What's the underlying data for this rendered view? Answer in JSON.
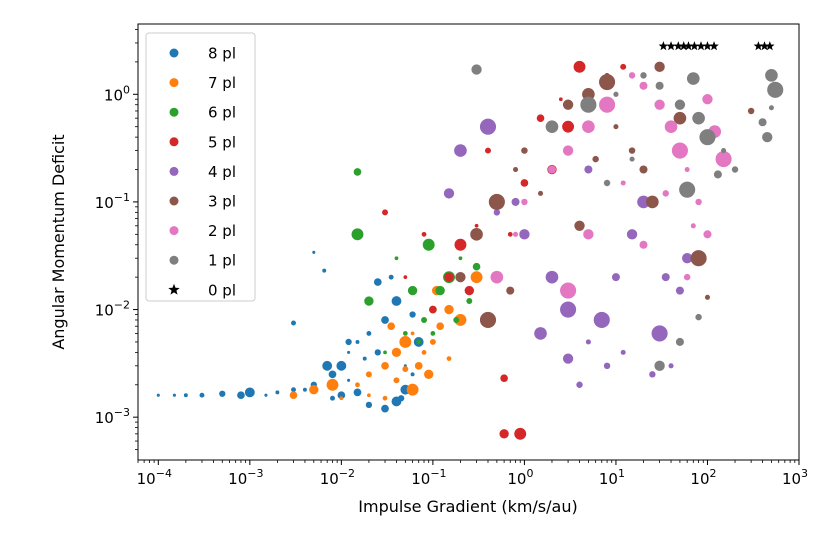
{
  "chart_data": {
    "type": "scatter",
    "xscale": "log",
    "yscale": "log",
    "xlim": [
      6e-05,
      1000
    ],
    "ylim": [
      0.0004,
      4.5
    ],
    "xlabel": "Impulse Gradient (km/s/au)",
    "ylabel": "Angular Momentum Deficit",
    "x_ticks": [
      {
        "value": 0.0001,
        "base": "10",
        "exp": "−4"
      },
      {
        "value": 0.001,
        "base": "10",
        "exp": "−3"
      },
      {
        "value": 0.01,
        "base": "10",
        "exp": "−2"
      },
      {
        "value": 0.1,
        "base": "10",
        "exp": "−1"
      },
      {
        "value": 1,
        "base": "10",
        "exp": "0"
      },
      {
        "value": 10,
        "base": "10",
        "exp": "1"
      },
      {
        "value": 100,
        "base": "10",
        "exp": "2"
      },
      {
        "value": 1000,
        "base": "10",
        "exp": "3"
      }
    ],
    "y_ticks": [
      {
        "value": 0.001,
        "base": "10",
        "exp": "−3"
      },
      {
        "value": 0.01,
        "base": "10",
        "exp": "−2"
      },
      {
        "value": 0.1,
        "base": "10",
        "exp": "−1"
      },
      {
        "value": 1,
        "base": "10",
        "exp": "0"
      }
    ],
    "legend_position": "upper-left",
    "series": [
      {
        "name": "8 pl",
        "color": "#1f77b4",
        "marker": "circle",
        "points": [
          [
            0.00015,
            0.0016
          ],
          [
            0.0002,
            0.0016
          ],
          [
            0.0003,
            0.0016
          ],
          [
            0.0005,
            0.00165
          ],
          [
            0.0008,
            0.0016
          ],
          [
            0.001,
            0.0017
          ],
          [
            0.0015,
            0.0016
          ],
          [
            0.002,
            0.0017
          ],
          [
            0.003,
            0.0018
          ],
          [
            0.005,
            0.002
          ],
          [
            0.008,
            0.0025
          ],
          [
            0.01,
            0.003
          ],
          [
            0.012,
            0.004
          ],
          [
            0.015,
            0.005
          ],
          [
            0.02,
            0.006
          ],
          [
            0.025,
            0.004
          ],
          [
            0.03,
            0.008
          ],
          [
            0.04,
            0.012
          ],
          [
            0.05,
            0.003
          ],
          [
            0.06,
            0.0025
          ],
          [
            0.008,
            0.0015
          ],
          [
            0.02,
            0.0013
          ],
          [
            0.03,
            0.0012
          ],
          [
            0.05,
            0.0018
          ],
          [
            0.012,
            0.0022
          ],
          [
            0.018,
            0.0035
          ],
          [
            0.035,
            0.02
          ],
          [
            0.045,
            0.0015
          ],
          [
            0.015,
            0.0017
          ],
          [
            0.07,
            0.005
          ],
          [
            0.0001,
            0.0016
          ],
          [
            0.004,
            0.0018
          ],
          [
            0.02,
            0.0025
          ],
          [
            0.012,
            0.005
          ],
          [
            0.025,
            0.018
          ],
          [
            0.007,
            0.003
          ],
          [
            0.005,
            0.034
          ],
          [
            0.0065,
            0.023
          ],
          [
            0.003,
            0.0075
          ],
          [
            0.06,
            0.009
          ],
          [
            0.01,
            0.0016
          ],
          [
            0.04,
            0.0014
          ]
        ]
      },
      {
        "name": "7 pl",
        "color": "#ff7f0e",
        "marker": "circle",
        "points": [
          [
            0.003,
            0.0016
          ],
          [
            0.005,
            0.0018
          ],
          [
            0.008,
            0.002
          ],
          [
            0.01,
            0.0015
          ],
          [
            0.015,
            0.002
          ],
          [
            0.02,
            0.0025
          ],
          [
            0.03,
            0.003
          ],
          [
            0.04,
            0.004
          ],
          [
            0.05,
            0.005
          ],
          [
            0.06,
            0.006
          ],
          [
            0.08,
            0.004
          ],
          [
            0.1,
            0.005
          ],
          [
            0.12,
            0.007
          ],
          [
            0.15,
            0.01
          ],
          [
            0.2,
            0.008
          ],
          [
            0.25,
            0.012
          ],
          [
            0.03,
            0.0015
          ],
          [
            0.04,
            0.0022
          ],
          [
            0.07,
            0.003
          ],
          [
            0.09,
            0.0025
          ],
          [
            0.06,
            0.0018
          ],
          [
            0.02,
            0.0016
          ],
          [
            0.15,
            0.0035
          ],
          [
            0.05,
            0.0028
          ],
          [
            0.035,
            0.007
          ],
          [
            0.11,
            0.015
          ],
          [
            0.3,
            0.02
          ]
        ]
      },
      {
        "name": "6 pl",
        "color": "#2ca02c",
        "marker": "circle",
        "points": [
          [
            0.03,
            0.004
          ],
          [
            0.05,
            0.006
          ],
          [
            0.08,
            0.008
          ],
          [
            0.1,
            0.01
          ],
          [
            0.12,
            0.015
          ],
          [
            0.15,
            0.02
          ],
          [
            0.2,
            0.03
          ],
          [
            0.07,
            0.005
          ],
          [
            0.25,
            0.012
          ],
          [
            0.3,
            0.025
          ],
          [
            0.02,
            0.012
          ],
          [
            0.015,
            0.05
          ],
          [
            0.04,
            0.03
          ],
          [
            0.1,
            0.006
          ],
          [
            0.18,
            0.008
          ],
          [
            0.015,
            0.19
          ],
          [
            0.06,
            0.015
          ],
          [
            0.09,
            0.04
          ]
        ]
      },
      {
        "name": "5 pl",
        "color": "#d62728",
        "marker": "circle",
        "points": [
          [
            0.1,
            0.01
          ],
          [
            0.15,
            0.02
          ],
          [
            0.2,
            0.04
          ],
          [
            0.3,
            0.06
          ],
          [
            0.5,
            0.08
          ],
          [
            0.8,
            0.1
          ],
          [
            1,
            0.15
          ],
          [
            2,
            0.2
          ],
          [
            3,
            0.5
          ],
          [
            5,
            1
          ],
          [
            8,
            1.5
          ],
          [
            12,
            1.8
          ],
          [
            0.6,
            0.0023
          ],
          [
            0.6,
            0.0007
          ],
          [
            0.9,
            0.0007
          ],
          [
            0.05,
            0.02
          ],
          [
            0.08,
            0.05
          ],
          [
            0.4,
            0.3
          ],
          [
            1.5,
            0.6
          ],
          [
            0.25,
            0.015
          ],
          [
            4,
            1.8
          ],
          [
            2.5,
            0.9
          ],
          [
            0.7,
            0.05
          ],
          [
            0.03,
            0.08
          ]
        ]
      },
      {
        "name": "4 pl",
        "color": "#9467bd",
        "marker": "circle",
        "points": [
          [
            0.3,
            0.05
          ],
          [
            0.5,
            0.08
          ],
          [
            0.8,
            0.1
          ],
          [
            1,
            0.05
          ],
          [
            2,
            0.02
          ],
          [
            3,
            0.01
          ],
          [
            5,
            0.005
          ],
          [
            8,
            0.003
          ],
          [
            10,
            0.02
          ],
          [
            15,
            0.05
          ],
          [
            20,
            0.1
          ],
          [
            30,
            0.006
          ],
          [
            40,
            0.003
          ],
          [
            25,
            0.0025
          ],
          [
            50,
            0.015
          ],
          [
            60,
            0.03
          ],
          [
            0.2,
            0.3
          ],
          [
            0.4,
            0.5
          ],
          [
            1,
            0.3
          ],
          [
            2,
            0.5
          ],
          [
            5,
            0.2
          ],
          [
            3,
            0.0035
          ],
          [
            1.5,
            0.006
          ],
          [
            7,
            0.008
          ],
          [
            12,
            0.004
          ],
          [
            4,
            0.002
          ],
          [
            35,
            0.02
          ],
          [
            0.15,
            0.12
          ]
        ]
      },
      {
        "name": "3 pl",
        "color": "#8c564b",
        "marker": "circle",
        "points": [
          [
            0.2,
            0.02
          ],
          [
            0.3,
            0.05
          ],
          [
            0.5,
            0.1
          ],
          [
            0.8,
            0.2
          ],
          [
            1,
            0.3
          ],
          [
            2,
            0.5
          ],
          [
            3,
            0.8
          ],
          [
            5,
            1
          ],
          [
            8,
            1.3
          ],
          [
            10,
            0.5
          ],
          [
            15,
            0.3
          ],
          [
            20,
            0.2
          ],
          [
            30,
            1.8
          ],
          [
            50,
            0.6
          ],
          [
            80,
            0.03
          ],
          [
            100,
            0.013
          ],
          [
            300,
            0.7
          ],
          [
            0.7,
            0.015
          ],
          [
            4,
            0.06
          ],
          [
            25,
            0.1
          ],
          [
            0.4,
            0.008
          ],
          [
            1.5,
            0.12
          ],
          [
            6,
            0.25
          ]
        ]
      },
      {
        "name": "2 pl",
        "color": "#e377c2",
        "marker": "circle",
        "points": [
          [
            0.8,
            0.05
          ],
          [
            1,
            0.1
          ],
          [
            2,
            0.2
          ],
          [
            3,
            0.3
          ],
          [
            5,
            0.5
          ],
          [
            8,
            0.8
          ],
          [
            10,
            1
          ],
          [
            15,
            1.5
          ],
          [
            20,
            1.2
          ],
          [
            30,
            0.8
          ],
          [
            40,
            0.5
          ],
          [
            50,
            0.3
          ],
          [
            60,
            0.2
          ],
          [
            80,
            0.1
          ],
          [
            100,
            0.05
          ],
          [
            100,
            0.9
          ],
          [
            120,
            0.45
          ],
          [
            150,
            0.25
          ],
          [
            70,
            0.06
          ],
          [
            60,
            0.02
          ],
          [
            20,
            0.04
          ],
          [
            5,
            0.05
          ],
          [
            0.5,
            0.02
          ],
          [
            3,
            0.015
          ],
          [
            12,
            0.15
          ],
          [
            35,
            0.12
          ]
        ]
      },
      {
        "name": "1 pl",
        "color": "#7f7f7f",
        "marker": "circle",
        "points": [
          [
            0.3,
            1.7
          ],
          [
            2,
            0.5
          ],
          [
            5,
            0.8
          ],
          [
            10,
            1
          ],
          [
            20,
            1.5
          ],
          [
            30,
            1.2
          ],
          [
            50,
            0.8
          ],
          [
            80,
            0.6
          ],
          [
            100,
            0.4
          ],
          [
            150,
            0.3
          ],
          [
            200,
            0.2
          ],
          [
            400,
            0.55
          ],
          [
            450,
            0.4
          ],
          [
            500,
            1.5
          ],
          [
            550,
            1.1
          ],
          [
            500,
            0.75
          ],
          [
            80,
            0.0085
          ],
          [
            50,
            0.005
          ],
          [
            30,
            0.003
          ],
          [
            70,
            1.4
          ],
          [
            60,
            0.13
          ],
          [
            15,
            0.25
          ],
          [
            8,
            0.15
          ],
          [
            130,
            0.18
          ]
        ]
      },
      {
        "name": "0 pl",
        "color": "#000000",
        "marker": "star",
        "points": [
          [
            33,
            2.8
          ],
          [
            40,
            2.8
          ],
          [
            48,
            2.8
          ],
          [
            55,
            2.8
          ],
          [
            62,
            2.8
          ],
          [
            72,
            2.8
          ],
          [
            85,
            2.8
          ],
          [
            100,
            2.8
          ],
          [
            118,
            2.8
          ],
          [
            360,
            2.8
          ],
          [
            420,
            2.8
          ],
          [
            480,
            2.8
          ]
        ]
      }
    ]
  }
}
